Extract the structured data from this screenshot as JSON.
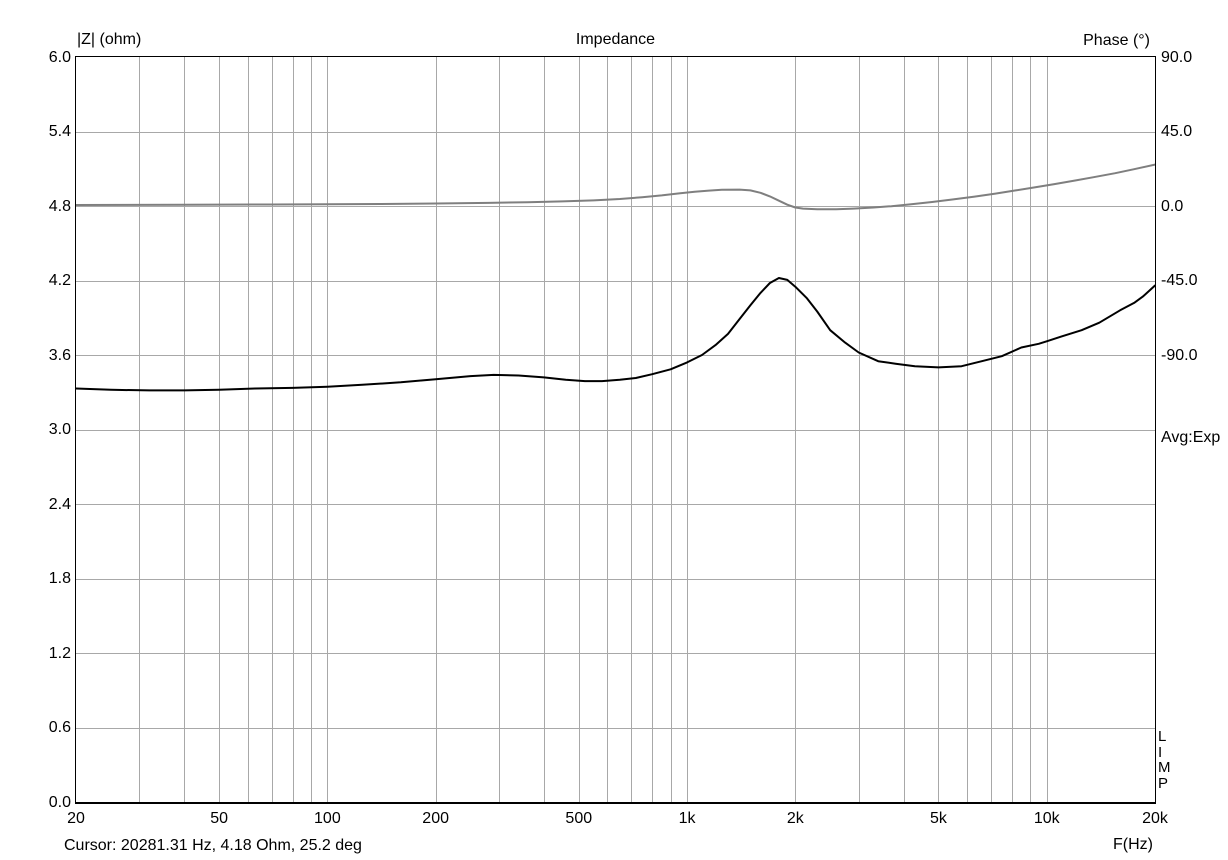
{
  "window_title": "Impedance",
  "side_panel": {
    "avg_label": "Avg:Exp",
    "program_letters": [
      "L",
      "I",
      "M",
      "P"
    ]
  },
  "footer": {
    "cursor_readout": "Cursor: 20281.31 Hz, 4.18 Ohm, 25.2 deg"
  },
  "colors": {
    "background": "#ffffff",
    "grid": "#a8a8a8",
    "axis_border": "#000000",
    "impedance_curve": "#000000",
    "phase_curve": "#7f7f7f",
    "text": "#000000"
  },
  "chart_data": {
    "type": "line",
    "title": "Impedance",
    "grid": true,
    "x_axis": {
      "label": "F(Hz)",
      "scale": "log",
      "min": 20,
      "max": 20000,
      "ticks": [
        {
          "value": 20,
          "label": "20"
        },
        {
          "value": 50,
          "label": "50"
        },
        {
          "value": 100,
          "label": "100"
        },
        {
          "value": 200,
          "label": "200"
        },
        {
          "value": 500,
          "label": "500"
        },
        {
          "value": 1000,
          "label": "1k"
        },
        {
          "value": 2000,
          "label": "2k"
        },
        {
          "value": 5000,
          "label": "5k"
        },
        {
          "value": 10000,
          "label": "10k"
        },
        {
          "value": 20000,
          "label": "20k"
        }
      ]
    },
    "y_left_axis": {
      "label": "|Z| (ohm)",
      "min": 0.0,
      "max": 6.0,
      "tick_step": 0.6,
      "divisions": 10,
      "tick_labels": [
        "6.0",
        "5.4",
        "4.8",
        "4.2",
        "3.6",
        "3.0",
        "2.4",
        "1.8",
        "1.2",
        "0.6",
        "0.0"
      ]
    },
    "y_right_axis": {
      "label": "Phase (°)",
      "value_at_top": 90.0,
      "degrees_per_division": 45.0,
      "divisions": 10,
      "tick_labels": [
        "90.0",
        "45.0",
        "0.0",
        "-45.0",
        "-90.0"
      ]
    },
    "series": [
      {
        "name": "impedance-magnitude",
        "unit": "Ohm",
        "axis": "left",
        "color": "#000000",
        "points": [
          [
            20,
            3.33
          ],
          [
            25,
            3.32
          ],
          [
            32,
            3.315
          ],
          [
            40,
            3.315
          ],
          [
            50,
            3.32
          ],
          [
            63,
            3.33
          ],
          [
            80,
            3.335
          ],
          [
            100,
            3.345
          ],
          [
            125,
            3.36
          ],
          [
            160,
            3.38
          ],
          [
            200,
            3.405
          ],
          [
            250,
            3.43
          ],
          [
            290,
            3.44
          ],
          [
            340,
            3.435
          ],
          [
            400,
            3.42
          ],
          [
            460,
            3.4
          ],
          [
            520,
            3.39
          ],
          [
            580,
            3.39
          ],
          [
            650,
            3.4
          ],
          [
            720,
            3.415
          ],
          [
            800,
            3.445
          ],
          [
            900,
            3.485
          ],
          [
            1000,
            3.54
          ],
          [
            1100,
            3.6
          ],
          [
            1200,
            3.68
          ],
          [
            1300,
            3.77
          ],
          [
            1400,
            3.89
          ],
          [
            1500,
            4.0
          ],
          [
            1600,
            4.1
          ],
          [
            1700,
            4.18
          ],
          [
            1800,
            4.22
          ],
          [
            1900,
            4.205
          ],
          [
            2000,
            4.15
          ],
          [
            2150,
            4.06
          ],
          [
            2300,
            3.95
          ],
          [
            2500,
            3.8
          ],
          [
            2750,
            3.7
          ],
          [
            3000,
            3.62
          ],
          [
            3400,
            3.55
          ],
          [
            3800,
            3.53
          ],
          [
            4300,
            3.51
          ],
          [
            5000,
            3.5
          ],
          [
            5800,
            3.51
          ],
          [
            6600,
            3.55
          ],
          [
            7500,
            3.59
          ],
          [
            8500,
            3.66
          ],
          [
            9500,
            3.69
          ],
          [
            10000,
            3.71
          ],
          [
            11000,
            3.75
          ],
          [
            12500,
            3.8
          ],
          [
            14000,
            3.86
          ],
          [
            16000,
            3.96
          ],
          [
            17500,
            4.02
          ],
          [
            18500,
            4.07
          ],
          [
            20000,
            4.16
          ]
        ]
      },
      {
        "name": "phase",
        "unit": "deg",
        "axis": "right",
        "color": "#7f7f7f",
        "points": [
          [
            20,
            0.6
          ],
          [
            40,
            0.7
          ],
          [
            70,
            0.9
          ],
          [
            100,
            1.0
          ],
          [
            140,
            1.2
          ],
          [
            200,
            1.5
          ],
          [
            280,
            1.9
          ],
          [
            360,
            2.3
          ],
          [
            450,
            2.8
          ],
          [
            550,
            3.4
          ],
          [
            650,
            4.2
          ],
          [
            750,
            5.3
          ],
          [
            850,
            6.4
          ],
          [
            950,
            7.6
          ],
          [
            1050,
            8.6
          ],
          [
            1150,
            9.3
          ],
          [
            1250,
            9.8
          ],
          [
            1400,
            9.9
          ],
          [
            1500,
            9.4
          ],
          [
            1600,
            8.0
          ],
          [
            1700,
            5.8
          ],
          [
            1800,
            3.2
          ],
          [
            1900,
            0.8
          ],
          [
            2000,
            -0.9
          ],
          [
            2100,
            -1.6
          ],
          [
            2300,
            -2.0
          ],
          [
            2600,
            -2.0
          ],
          [
            2900,
            -1.6
          ],
          [
            3300,
            -0.9
          ],
          [
            3700,
            -0.1
          ],
          [
            4200,
            1.0
          ],
          [
            4800,
            2.4
          ],
          [
            5500,
            4.0
          ],
          [
            6300,
            5.7
          ],
          [
            7200,
            7.5
          ],
          [
            8200,
            9.4
          ],
          [
            9300,
            11.3
          ],
          [
            10500,
            13.2
          ],
          [
            12000,
            15.4
          ],
          [
            13500,
            17.4
          ],
          [
            15500,
            19.8
          ],
          [
            17500,
            22.2
          ],
          [
            20000,
            25.0
          ]
        ]
      }
    ]
  }
}
